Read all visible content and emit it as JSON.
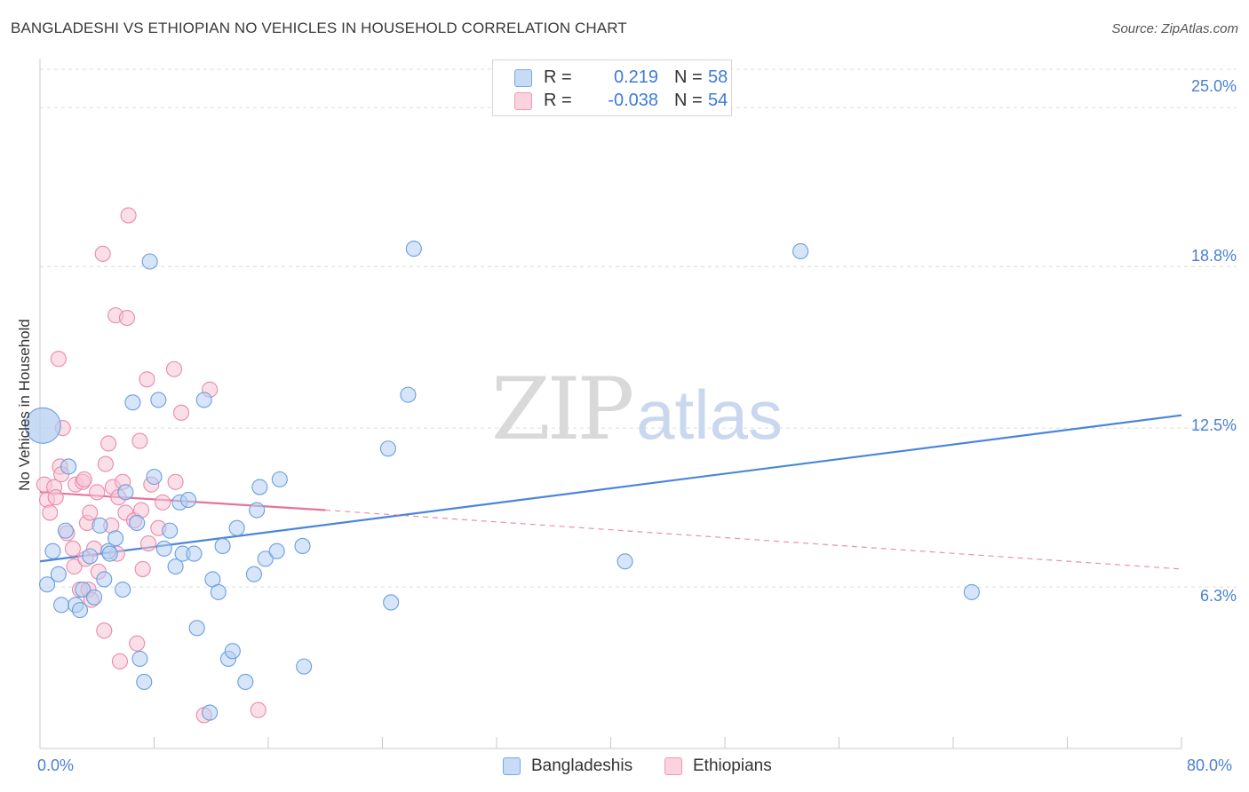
{
  "title": "BANGLADESHI VS ETHIOPIAN NO VEHICLES IN HOUSEHOLD CORRELATION CHART",
  "source": "Source: ZipAtlas.com",
  "watermark": {
    "zip": "ZIP",
    "atlas": "atlas"
  },
  "legend": {
    "rows": [
      {
        "r_label": "R =",
        "r_value": "0.219",
        "n_label": "N =",
        "n_value": "58",
        "color": "#a9c7f0"
      },
      {
        "r_label": "R =",
        "r_value": "-0.038",
        "n_label": "N =",
        "n_value": "54",
        "color": "#f6b9cc"
      }
    ]
  },
  "bottom_legend": [
    {
      "label": "Bangladeshis",
      "color": "#a9c7f0"
    },
    {
      "label": "Ethiopians",
      "color": "#f6b9cc"
    }
  ],
  "chart_data": {
    "type": "scatter",
    "title": "BANGLADESHI VS ETHIOPIAN NO VEHICLES IN HOUSEHOLD CORRELATION CHART",
    "xlabel": "",
    "ylabel": "No Vehicles in Household",
    "xlim": [
      0,
      80
    ],
    "ylim": [
      0,
      26.5
    ],
    "x_tick_labels": [
      "0.0%",
      "80.0%"
    ],
    "y_ticks": [
      6.3,
      12.5,
      18.8,
      25.0
    ],
    "y_tick_labels": [
      "6.3%",
      "12.5%",
      "18.8%",
      "25.0%"
    ],
    "grid": true,
    "series": [
      {
        "name": "Bangladeshis",
        "color": "#4a86d8",
        "fill": "#a9c7f0",
        "trend": {
          "x0": 0,
          "y0": 7.3,
          "x1": 80,
          "y1": 13.0,
          "style": "solid"
        },
        "points": [
          [
            0.5,
            6.4
          ],
          [
            0.9,
            7.7
          ],
          [
            1.3,
            6.8
          ],
          [
            1.5,
            5.6
          ],
          [
            1.8,
            8.5
          ],
          [
            2.0,
            11.0
          ],
          [
            2.5,
            5.6
          ],
          [
            2.8,
            5.4
          ],
          [
            3.0,
            6.2
          ],
          [
            3.5,
            7.5
          ],
          [
            3.8,
            5.9
          ],
          [
            4.2,
            8.7
          ],
          [
            4.5,
            6.6
          ],
          [
            4.8,
            7.7
          ],
          [
            5.3,
            8.2
          ],
          [
            5.8,
            6.2
          ],
          [
            6.0,
            10.0
          ],
          [
            6.5,
            13.5
          ],
          [
            6.8,
            8.8
          ],
          [
            7.0,
            3.5
          ],
          [
            7.3,
            2.6
          ],
          [
            7.7,
            19.0
          ],
          [
            8.0,
            10.6
          ],
          [
            8.3,
            13.6
          ],
          [
            8.7,
            7.8
          ],
          [
            9.1,
            8.5
          ],
          [
            9.5,
            7.1
          ],
          [
            9.8,
            9.6
          ],
          [
            10.0,
            7.6
          ],
          [
            10.4,
            9.7
          ],
          [
            10.8,
            7.6
          ],
          [
            11.0,
            4.7
          ],
          [
            11.5,
            13.6
          ],
          [
            11.9,
            1.4
          ],
          [
            12.1,
            6.6
          ],
          [
            12.5,
            6.1
          ],
          [
            12.8,
            7.9
          ],
          [
            13.2,
            3.5
          ],
          [
            13.5,
            3.8
          ],
          [
            13.8,
            8.6
          ],
          [
            14.4,
            2.6
          ],
          [
            15.0,
            6.8
          ],
          [
            15.2,
            9.3
          ],
          [
            15.4,
            10.2
          ],
          [
            15.8,
            7.4
          ],
          [
            16.6,
            7.7
          ],
          [
            16.8,
            10.5
          ],
          [
            18.4,
            7.9
          ],
          [
            18.5,
            3.2
          ],
          [
            24.4,
            11.7
          ],
          [
            24.6,
            5.7
          ],
          [
            25.8,
            13.8
          ],
          [
            26.2,
            19.5
          ],
          [
            41.0,
            7.3
          ],
          [
            53.3,
            19.4
          ],
          [
            65.3,
            6.1
          ],
          [
            0.2,
            12.6
          ],
          [
            4.9,
            7.6
          ]
        ]
      },
      {
        "name": "Ethiopians",
        "color": "#e5739a",
        "fill": "#f6b9cc",
        "trend": {
          "x0": 0,
          "y0": 10.0,
          "x1": 20,
          "y1": 9.3,
          "dash_to_x": 80,
          "dash_to_y": 7.0
        },
        "points": [
          [
            0.3,
            10.3
          ],
          [
            0.5,
            9.7
          ],
          [
            0.7,
            9.2
          ],
          [
            1.0,
            10.2
          ],
          [
            1.1,
            9.8
          ],
          [
            1.3,
            15.2
          ],
          [
            1.4,
            11.0
          ],
          [
            1.5,
            10.7
          ],
          [
            1.6,
            12.5
          ],
          [
            1.9,
            8.4
          ],
          [
            2.3,
            7.8
          ],
          [
            2.4,
            7.1
          ],
          [
            2.5,
            10.3
          ],
          [
            2.8,
            6.2
          ],
          [
            3.0,
            10.4
          ],
          [
            3.1,
            10.5
          ],
          [
            3.2,
            7.4
          ],
          [
            3.3,
            8.8
          ],
          [
            3.4,
            6.2
          ],
          [
            3.5,
            9.2
          ],
          [
            3.6,
            5.8
          ],
          [
            3.8,
            7.8
          ],
          [
            4.0,
            10.0
          ],
          [
            4.1,
            6.9
          ],
          [
            4.4,
            19.3
          ],
          [
            4.5,
            4.6
          ],
          [
            4.6,
            11.1
          ],
          [
            4.8,
            11.9
          ],
          [
            5.0,
            8.7
          ],
          [
            5.1,
            10.2
          ],
          [
            5.3,
            16.9
          ],
          [
            5.4,
            7.6
          ],
          [
            5.5,
            9.8
          ],
          [
            5.6,
            3.4
          ],
          [
            5.8,
            10.4
          ],
          [
            6.0,
            9.2
          ],
          [
            6.1,
            16.8
          ],
          [
            6.2,
            20.8
          ],
          [
            6.6,
            8.9
          ],
          [
            6.8,
            4.1
          ],
          [
            7.0,
            12.0
          ],
          [
            7.1,
            9.3
          ],
          [
            7.2,
            7.0
          ],
          [
            7.5,
            14.4
          ],
          [
            7.6,
            8.0
          ],
          [
            7.8,
            10.3
          ],
          [
            8.3,
            8.6
          ],
          [
            8.6,
            9.6
          ],
          [
            9.4,
            14.8
          ],
          [
            9.5,
            10.4
          ],
          [
            9.9,
            13.1
          ],
          [
            11.5,
            1.3
          ],
          [
            11.9,
            14.0
          ],
          [
            15.3,
            1.5
          ]
        ]
      }
    ]
  }
}
